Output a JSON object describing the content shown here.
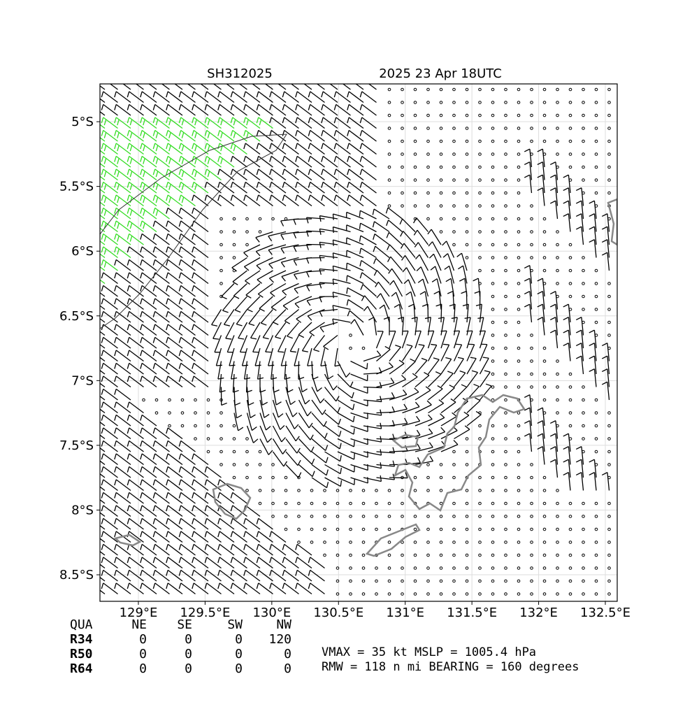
{
  "chart_data": {
    "type": "barbs",
    "title_left": "SH312025",
    "title_right": "2025 23 Apr 18UTC",
    "xlim": [
      128.712,
      132.589
    ],
    "ylim": [
      -8.705,
      -4.708
    ],
    "xticks": [
      {
        "value": 129,
        "label": "129°E"
      },
      {
        "value": 129.5,
        "label": "129.5°E"
      },
      {
        "value": 130,
        "label": "130°E"
      },
      {
        "value": 130.5,
        "label": "130.5°E"
      },
      {
        "value": 131,
        "label": "131°E"
      },
      {
        "value": 131.5,
        "label": "131.5°E"
      },
      {
        "value": 132,
        "label": "132°E"
      },
      {
        "value": 132.5,
        "label": "132.5°E"
      }
    ],
    "yticks": [
      {
        "value": -5,
        "label": "5°S"
      },
      {
        "value": -5.5,
        "label": "5.5°S"
      },
      {
        "value": -6,
        "label": "6°S"
      },
      {
        "value": -6.5,
        "label": "6.5°S"
      },
      {
        "value": -7,
        "label": "7°S"
      },
      {
        "value": -7.5,
        "label": "7.5°S"
      },
      {
        "value": -8,
        "label": "8°S"
      },
      {
        "value": -8.5,
        "label": "8.5°S"
      }
    ],
    "grid": true,
    "table": {
      "header": [
        "QUA",
        "NE",
        "SE",
        "SW",
        "NW"
      ],
      "rows": [
        [
          "R34",
          "0",
          "0",
          "0",
          "120"
        ],
        [
          "R50",
          "0",
          "0",
          "0",
          "0"
        ],
        [
          "R64",
          "0",
          "0",
          "0",
          "0"
        ]
      ]
    },
    "info": [
      "VMAX =  35 kt MSLP = 1005.4 hPa",
      "RMW = 118 n mi BEARING = 160 degrees"
    ]
  }
}
